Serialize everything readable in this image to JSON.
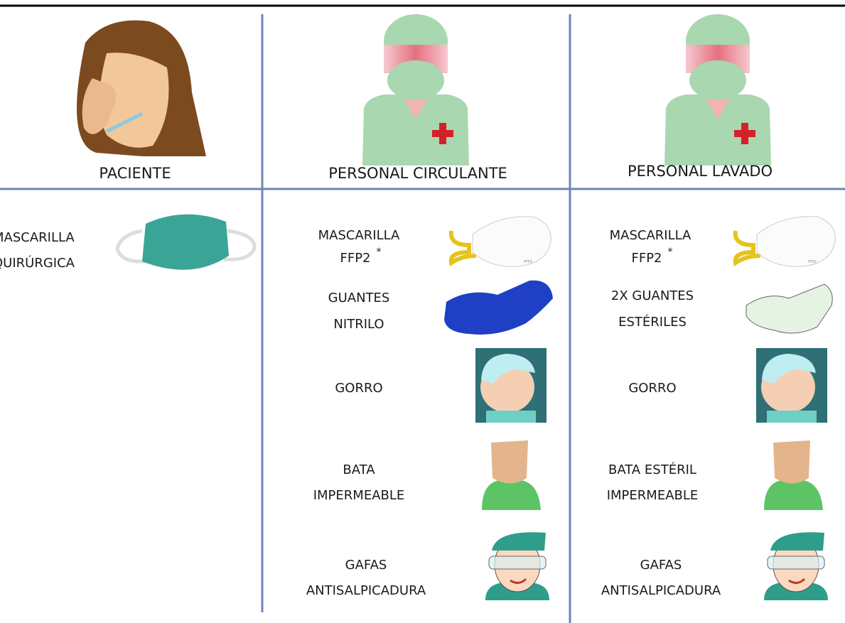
{
  "columns": [
    {
      "header": "PACIENTE",
      "items": [
        {
          "lines": [
            "MASCARILLA",
            "QUIRÚRGICA"
          ]
        }
      ]
    },
    {
      "header": "PERSONAL CIRCULANTE",
      "items": [
        {
          "lines": [
            "MASCARILLA",
            "FFP2"
          ],
          "mark": "*",
          "icon_text": "FFP2"
        },
        {
          "lines": [
            "GUANTES",
            "NITRILO"
          ]
        },
        {
          "lines": [
            "GORRO"
          ]
        },
        {
          "lines": [
            "BATA",
            "IMPERMEABLE"
          ]
        },
        {
          "lines": [
            "GAFAS",
            "ANTISALPICADURA"
          ]
        }
      ]
    },
    {
      "header": "PERSONAL LAVADO",
      "items": [
        {
          "lines": [
            "MASCARILLA",
            "FFP2"
          ],
          "mark": "*",
          "icon_text": "FFP2"
        },
        {
          "lines": [
            "2X GUANTES",
            "ESTÉRILES"
          ]
        },
        {
          "lines": [
            "GORRO"
          ]
        },
        {
          "lines": [
            "BATA ESTÉRIL",
            "IMPERMEABLE"
          ]
        },
        {
          "lines": [
            "GAFAS",
            "ANTISALPICADURA"
          ]
        }
      ]
    }
  ]
}
